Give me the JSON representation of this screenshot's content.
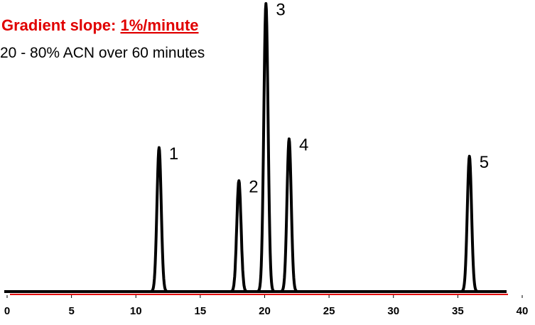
{
  "chart_data": {
    "type": "line",
    "title": "Gradient slope:",
    "title_emphasis": "1%/minute",
    "subtitle": "20 - 80% ACN over 60 minutes",
    "peaks": {
      "labels": [
        "1",
        "2",
        "3",
        "4",
        "5"
      ],
      "x": [
        11.8,
        18.0,
        20.1,
        21.9,
        35.9
      ],
      "values": [
        50,
        38.5,
        100,
        53,
        47
      ]
    },
    "color": "#000000",
    "baseline_color": "#e00000",
    "xlim": [
      0,
      40
    ],
    "xticks": [
      0,
      5,
      10,
      15,
      20,
      25,
      30,
      35,
      40
    ],
    "ylim": [
      0,
      100
    ]
  }
}
